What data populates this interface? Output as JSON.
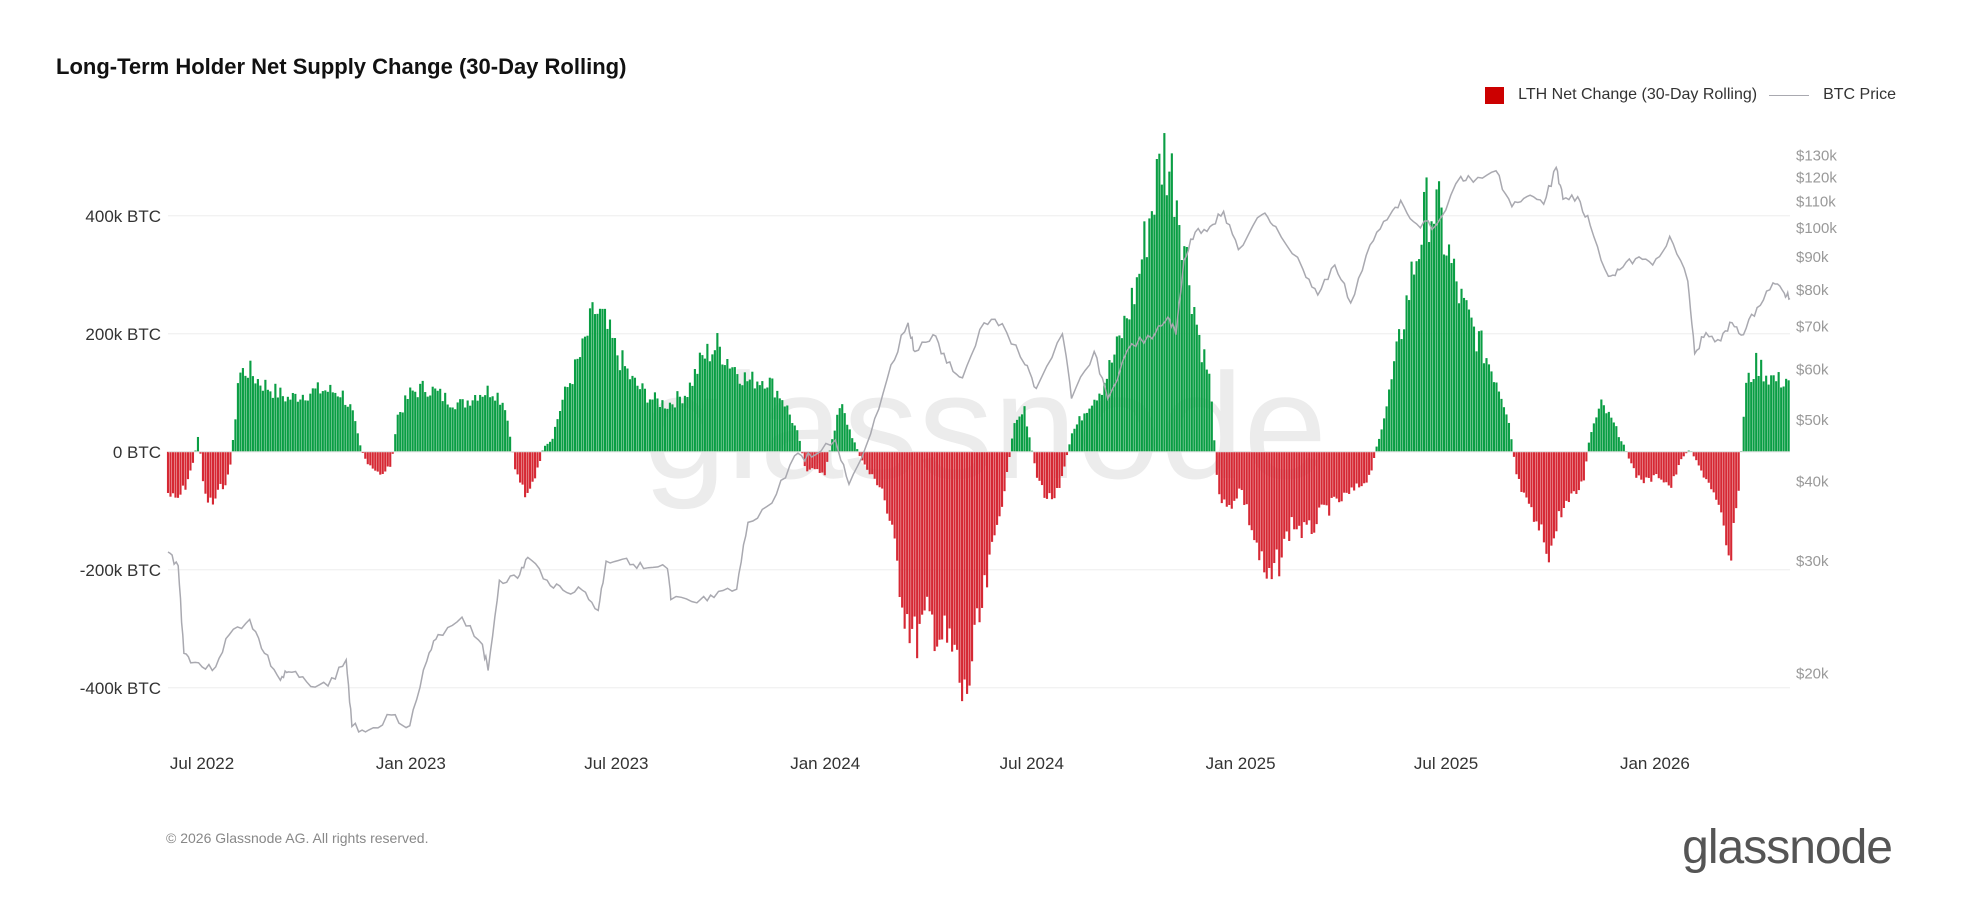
{
  "title": "Long-Term Holder Net Supply Change (30-Day Rolling)",
  "legend": {
    "bar_label": "LTH Net Change (30-Day Rolling)",
    "line_label": "BTC Price"
  },
  "colors": {
    "positive": "#0a9e44",
    "negative": "#d62834",
    "price": "#a9a9b0",
    "grid": "#eeeeee",
    "watermark": "#ececec"
  },
  "watermark_text": "glassnode",
  "footer": {
    "copyright": "© 2026 Glassnode AG. All rights reserved.",
    "brand": "glassnode"
  },
  "chart_data": {
    "type": "bar",
    "x_range": [
      "2022-06-01",
      "2026-04-30"
    ],
    "x_ticks": [
      {
        "date": "2022-07-01",
        "label": "Jul 2022"
      },
      {
        "date": "2023-01-01",
        "label": "Jan 2023"
      },
      {
        "date": "2023-07-01",
        "label": "Jul 2023"
      },
      {
        "date": "2024-01-01",
        "label": "Jan 2024"
      },
      {
        "date": "2024-07-01",
        "label": "Jul 2024"
      },
      {
        "date": "2025-01-01",
        "label": "Jan 2025"
      },
      {
        "date": "2025-07-01",
        "label": "Jul 2025"
      },
      {
        "date": "2026-01-01",
        "label": "Jan 2026"
      }
    ],
    "y_left": {
      "unit": "BTC",
      "range": [
        -480000,
        520000
      ],
      "ticks": [
        {
          "value": 400000,
          "label": "400k BTC"
        },
        {
          "value": 200000,
          "label": "200k BTC"
        },
        {
          "value": 0,
          "label": "0 BTC"
        },
        {
          "value": -200000,
          "label": "-200k BTC"
        },
        {
          "value": -400000,
          "label": "-400k BTC"
        }
      ]
    },
    "y_right": {
      "scale": "log",
      "range": [
        16000,
        135000
      ],
      "ticks": [
        {
          "value": 130000,
          "label": "$130k"
        },
        {
          "value": 120000,
          "label": "$120k"
        },
        {
          "value": 110000,
          "label": "$110k"
        },
        {
          "value": 100000,
          "label": "$100k"
        },
        {
          "value": 90000,
          "label": "$90k"
        },
        {
          "value": 80000,
          "label": "$80k"
        },
        {
          "value": 70000,
          "label": "$70k"
        },
        {
          "value": 60000,
          "label": "$60k"
        },
        {
          "value": 50000,
          "label": "$50k"
        },
        {
          "value": 40000,
          "label": "$40k"
        },
        {
          "value": 30000,
          "label": "$30k"
        },
        {
          "value": 20000,
          "label": "$20k"
        }
      ]
    },
    "series": [
      {
        "name": "LTH Net Change (30-Day Rolling)",
        "kind": "bar",
        "points": [
          [
            "2022-06-01",
            -70000
          ],
          [
            "2022-06-08",
            -85000
          ],
          [
            "2022-06-16",
            -60000
          ],
          [
            "2022-06-23",
            -20000
          ],
          [
            "2022-06-28",
            30000
          ],
          [
            "2022-07-03",
            -75000
          ],
          [
            "2022-07-10",
            -90000
          ],
          [
            "2022-07-18",
            -60000
          ],
          [
            "2022-07-25",
            -40000
          ],
          [
            "2022-07-30",
            50000
          ],
          [
            "2022-08-02",
            130000
          ],
          [
            "2022-08-10",
            140000
          ],
          [
            "2022-08-20",
            120000
          ],
          [
            "2022-09-01",
            105000
          ],
          [
            "2022-09-15",
            90000
          ],
          [
            "2022-10-01",
            100000
          ],
          [
            "2022-10-15",
            105000
          ],
          [
            "2022-11-01",
            100000
          ],
          [
            "2022-11-10",
            70000
          ],
          [
            "2022-11-18",
            5000
          ],
          [
            "2022-11-25",
            -25000
          ],
          [
            "2022-12-05",
            -40000
          ],
          [
            "2022-12-15",
            -20000
          ],
          [
            "2022-12-20",
            60000
          ],
          [
            "2023-01-01",
            100000
          ],
          [
            "2023-01-15",
            110000
          ],
          [
            "2023-02-01",
            90000
          ],
          [
            "2023-02-15",
            80000
          ],
          [
            "2023-03-01",
            100000
          ],
          [
            "2023-03-15",
            105000
          ],
          [
            "2023-03-25",
            80000
          ],
          [
            "2023-04-03",
            -30000
          ],
          [
            "2023-04-12",
            -70000
          ],
          [
            "2023-04-20",
            -50000
          ],
          [
            "2023-04-28",
            10000
          ],
          [
            "2023-05-05",
            20000
          ],
          [
            "2023-05-15",
            90000
          ],
          [
            "2023-06-01",
            170000
          ],
          [
            "2023-06-12",
            240000
          ],
          [
            "2023-06-20",
            220000
          ],
          [
            "2023-07-01",
            170000
          ],
          [
            "2023-07-15",
            120000
          ],
          [
            "2023-08-01",
            90000
          ],
          [
            "2023-08-15",
            80000
          ],
          [
            "2023-09-01",
            100000
          ],
          [
            "2023-09-15",
            160000
          ],
          [
            "2023-09-28",
            180000
          ],
          [
            "2023-10-10",
            150000
          ],
          [
            "2023-10-25",
            120000
          ],
          [
            "2023-11-10",
            125000
          ],
          [
            "2023-11-25",
            90000
          ],
          [
            "2023-12-08",
            30000
          ],
          [
            "2023-12-15",
            -30000
          ],
          [
            "2024-01-01",
            -35000
          ],
          [
            "2024-01-08",
            30000
          ],
          [
            "2024-01-15",
            80000
          ],
          [
            "2024-01-22",
            40000
          ],
          [
            "2024-02-01",
            -10000
          ],
          [
            "2024-02-10",
            -40000
          ],
          [
            "2024-02-20",
            -60000
          ],
          [
            "2024-03-01",
            -150000
          ],
          [
            "2024-03-10",
            -260000
          ],
          [
            "2024-03-20",
            -320000
          ],
          [
            "2024-04-01",
            -280000
          ],
          [
            "2024-04-15",
            -320000
          ],
          [
            "2024-04-25",
            -350000
          ],
          [
            "2024-05-02",
            -430000
          ],
          [
            "2024-05-10",
            -350000
          ],
          [
            "2024-05-20",
            -250000
          ],
          [
            "2024-06-01",
            -120000
          ],
          [
            "2024-06-10",
            -30000
          ],
          [
            "2024-06-15",
            40000
          ],
          [
            "2024-06-25",
            70000
          ],
          [
            "2024-07-05",
            -40000
          ],
          [
            "2024-07-15",
            -80000
          ],
          [
            "2024-07-25",
            -70000
          ],
          [
            "2024-08-05",
            30000
          ],
          [
            "2024-08-20",
            80000
          ],
          [
            "2024-09-01",
            110000
          ],
          [
            "2024-09-15",
            180000
          ],
          [
            "2024-10-01",
            280000
          ],
          [
            "2024-10-15",
            420000
          ],
          [
            "2024-10-25",
            510000
          ],
          [
            "2024-11-05",
            450000
          ],
          [
            "2024-11-15",
            320000
          ],
          [
            "2024-11-25",
            200000
          ],
          [
            "2024-12-05",
            120000
          ],
          [
            "2024-12-12",
            -60000
          ],
          [
            "2024-12-20",
            -100000
          ],
          [
            "2025-01-01",
            -60000
          ],
          [
            "2025-01-15",
            -160000
          ],
          [
            "2025-01-25",
            -230000
          ],
          [
            "2025-02-05",
            -180000
          ],
          [
            "2025-02-15",
            -120000
          ],
          [
            "2025-03-01",
            -140000
          ],
          [
            "2025-03-15",
            -100000
          ],
          [
            "2025-04-01",
            -80000
          ],
          [
            "2025-04-15",
            -60000
          ],
          [
            "2025-04-25",
            -40000
          ],
          [
            "2025-05-01",
            10000
          ],
          [
            "2025-05-10",
            80000
          ],
          [
            "2025-05-20",
            180000
          ],
          [
            "2025-06-01",
            300000
          ],
          [
            "2025-06-15",
            420000
          ],
          [
            "2025-06-25",
            400000
          ],
          [
            "2025-07-05",
            320000
          ],
          [
            "2025-07-15",
            250000
          ],
          [
            "2025-08-01",
            180000
          ],
          [
            "2025-08-15",
            120000
          ],
          [
            "2025-08-25",
            60000
          ],
          [
            "2025-09-01",
            -40000
          ],
          [
            "2025-09-10",
            -90000
          ],
          [
            "2025-09-20",
            -130000
          ],
          [
            "2025-10-01",
            -170000
          ],
          [
            "2025-10-10",
            -100000
          ],
          [
            "2025-10-20",
            -80000
          ],
          [
            "2025-10-30",
            -50000
          ],
          [
            "2025-11-05",
            30000
          ],
          [
            "2025-11-15",
            80000
          ],
          [
            "2025-11-25",
            50000
          ],
          [
            "2025-12-05",
            10000
          ],
          [
            "2025-12-15",
            -40000
          ],
          [
            "2025-12-25",
            -50000
          ],
          [
            "2026-01-05",
            -40000
          ],
          [
            "2026-01-15",
            -60000
          ],
          [
            "2026-01-25",
            -10000
          ],
          [
            "2026-02-01",
            5000
          ],
          [
            "2026-02-10",
            -30000
          ],
          [
            "2026-02-20",
            -60000
          ],
          [
            "2026-03-01",
            -120000
          ],
          [
            "2026-03-08",
            -200000
          ],
          [
            "2026-03-15",
            -80000
          ],
          [
            "2026-03-22",
            110000
          ],
          [
            "2026-04-01",
            150000
          ],
          [
            "2026-04-10",
            130000
          ],
          [
            "2026-04-20",
            120000
          ],
          [
            "2026-04-30",
            125000
          ]
        ]
      },
      {
        "name": "BTC Price",
        "kind": "line",
        "points": [
          [
            "2022-06-01",
            31000
          ],
          [
            "2022-06-10",
            29500
          ],
          [
            "2022-06-15",
            21500
          ],
          [
            "2022-06-25",
            20800
          ],
          [
            "2022-07-10",
            20200
          ],
          [
            "2022-07-25",
            23000
          ],
          [
            "2022-08-12",
            24300
          ],
          [
            "2022-08-25",
            21500
          ],
          [
            "2022-09-08",
            19500
          ],
          [
            "2022-09-15",
            20100
          ],
          [
            "2022-10-01",
            19400
          ],
          [
            "2022-10-20",
            19100
          ],
          [
            "2022-11-05",
            21000
          ],
          [
            "2022-11-10",
            16500
          ],
          [
            "2022-11-25",
            16300
          ],
          [
            "2022-12-15",
            17200
          ],
          [
            "2022-12-31",
            16550
          ],
          [
            "2023-01-15",
            20900
          ],
          [
            "2023-01-25",
            23000
          ],
          [
            "2023-02-15",
            24500
          ],
          [
            "2023-03-05",
            22200
          ],
          [
            "2023-03-10",
            20200
          ],
          [
            "2023-03-20",
            28000
          ],
          [
            "2023-04-05",
            28200
          ],
          [
            "2023-04-14",
            30400
          ],
          [
            "2023-05-01",
            28000
          ],
          [
            "2023-05-15",
            27000
          ],
          [
            "2023-06-01",
            27000
          ],
          [
            "2023-06-15",
            25100
          ],
          [
            "2023-06-22",
            30000
          ],
          [
            "2023-07-10",
            30300
          ],
          [
            "2023-07-25",
            29200
          ],
          [
            "2023-08-15",
            29200
          ],
          [
            "2023-08-18",
            26100
          ],
          [
            "2023-09-10",
            25800
          ],
          [
            "2023-09-25",
            26300
          ],
          [
            "2023-10-15",
            27100
          ],
          [
            "2023-10-25",
            34500
          ],
          [
            "2023-11-15",
            37000
          ],
          [
            "2023-12-05",
            43900
          ],
          [
            "2023-12-20",
            43700
          ],
          [
            "2024-01-10",
            46500
          ],
          [
            "2024-01-22",
            39600
          ],
          [
            "2024-02-10",
            47500
          ],
          [
            "2024-02-28",
            61000
          ],
          [
            "2024-03-14",
            71000
          ],
          [
            "2024-03-20",
            64000
          ],
          [
            "2024-04-05",
            68000
          ],
          [
            "2024-04-17",
            61400
          ],
          [
            "2024-05-01",
            58200
          ],
          [
            "2024-05-20",
            71000
          ],
          [
            "2024-06-05",
            70800
          ],
          [
            "2024-06-25",
            61000
          ],
          [
            "2024-07-05",
            56000
          ],
          [
            "2024-07-28",
            68200
          ],
          [
            "2024-08-05",
            54000
          ],
          [
            "2024-08-25",
            64000
          ],
          [
            "2024-09-06",
            53900
          ],
          [
            "2024-09-27",
            65800
          ],
          [
            "2024-10-15",
            67000
          ],
          [
            "2024-10-29",
            72500
          ],
          [
            "2024-11-05",
            68000
          ],
          [
            "2024-11-12",
            89000
          ],
          [
            "2024-11-22",
            98500
          ],
          [
            "2024-12-05",
            100500
          ],
          [
            "2024-12-17",
            106200
          ],
          [
            "2024-12-30",
            92500
          ],
          [
            "2025-01-20",
            105000
          ],
          [
            "2025-02-01",
            100500
          ],
          [
            "2025-02-25",
            86000
          ],
          [
            "2025-03-10",
            78500
          ],
          [
            "2025-03-25",
            87500
          ],
          [
            "2025-04-08",
            76300
          ],
          [
            "2025-04-25",
            94000
          ],
          [
            "2025-05-10",
            103000
          ],
          [
            "2025-05-22",
            110500
          ],
          [
            "2025-06-05",
            101500
          ],
          [
            "2025-06-22",
            100900
          ],
          [
            "2025-07-14",
            120500
          ],
          [
            "2025-07-25",
            118000
          ],
          [
            "2025-08-14",
            123000
          ],
          [
            "2025-08-28",
            108000
          ],
          [
            "2025-09-10",
            112000
          ],
          [
            "2025-09-25",
            109000
          ],
          [
            "2025-10-06",
            124500
          ],
          [
            "2025-10-12",
            111000
          ],
          [
            "2025-10-25",
            112000
          ],
          [
            "2025-11-05",
            101000
          ],
          [
            "2025-11-21",
            84000
          ],
          [
            "2025-12-01",
            86000
          ],
          [
            "2025-12-15",
            89500
          ],
          [
            "2025-12-30",
            87500
          ],
          [
            "2026-01-14",
            97000
          ],
          [
            "2026-01-30",
            82500
          ],
          [
            "2026-02-05",
            63500
          ],
          [
            "2026-02-15",
            68500
          ],
          [
            "2026-02-28",
            66500
          ],
          [
            "2026-03-10",
            71000
          ],
          [
            "2026-03-20",
            68000
          ],
          [
            "2026-04-01",
            75000
          ],
          [
            "2026-04-15",
            82000
          ],
          [
            "2026-04-25",
            79000
          ],
          [
            "2026-04-30",
            77500
          ]
        ]
      }
    ]
  }
}
